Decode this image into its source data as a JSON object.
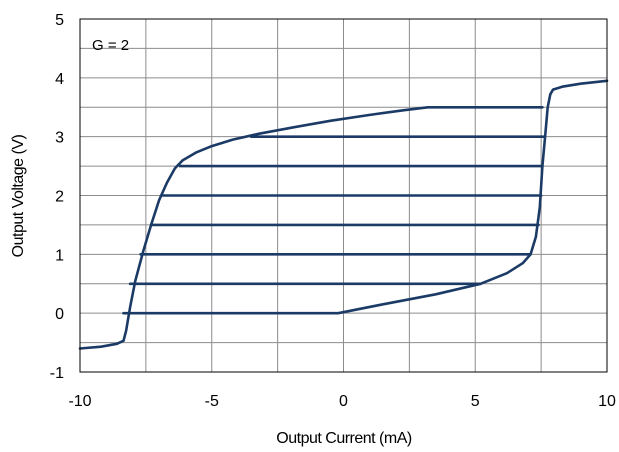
{
  "chart_data": {
    "type": "line",
    "title": "",
    "xlabel": "Output Current (mA)",
    "ylabel": "Output Voltage (V)",
    "xlim": [
      -10,
      10
    ],
    "ylim": [
      -1,
      5
    ],
    "xticks": [
      -10,
      -5,
      0,
      5,
      10
    ],
    "xtick_labels": [
      "-10",
      "-5",
      "0",
      "5",
      "10"
    ],
    "yticks": [
      -1,
      0,
      1,
      2,
      3,
      4,
      5
    ],
    "ytick_labels": [
      "-1",
      "0",
      "1",
      "2",
      "3",
      "4",
      "5"
    ],
    "grid": true,
    "annotation": "G = 2",
    "line_color": "#1b3b66",
    "series": [
      {
        "x": [
          -10,
          -9.2,
          -8.6,
          -8.35,
          -8.25,
          -8.1,
          -7.9,
          -7.6,
          -7.3,
          -7.0,
          -6.7,
          -6.4,
          -6.1,
          -5.6,
          -5.0,
          -4.2,
          -3.2,
          -2.0,
          -0.5,
          1.0,
          2.3,
          3.2,
          7.55
        ],
        "y": [
          -0.6,
          -0.57,
          -0.52,
          -0.47,
          -0.3,
          0.1,
          0.55,
          1.05,
          1.5,
          1.92,
          2.22,
          2.46,
          2.6,
          2.73,
          2.84,
          2.95,
          3.05,
          3.15,
          3.27,
          3.37,
          3.45,
          3.5,
          3.5
        ]
      },
      {
        "x": [
          -3.5,
          7.6
        ],
        "y": [
          3.0,
          3.0
        ]
      },
      {
        "x": [
          -6.2,
          7.55
        ],
        "y": [
          2.5,
          2.5
        ]
      },
      {
        "x": [
          -6.85,
          7.5
        ],
        "y": [
          2.0,
          2.0
        ]
      },
      {
        "x": [
          -7.3,
          7.4
        ],
        "y": [
          1.5,
          1.5
        ]
      },
      {
        "x": [
          -7.7,
          7.1
        ],
        "y": [
          1.0,
          1.0
        ]
      },
      {
        "x": [
          -8.1,
          5.2
        ],
        "y": [
          0.5,
          0.5
        ]
      },
      {
        "x": [
          -8.35,
          -0.2,
          1.5,
          3.5,
          5.2,
          6.2,
          6.8,
          7.1,
          7.3,
          7.45,
          7.55,
          7.65,
          7.75,
          7.85,
          7.95,
          8.3,
          9.0,
          10.0
        ],
        "y": [
          0.0,
          0.0,
          0.15,
          0.32,
          0.5,
          0.68,
          0.85,
          1.0,
          1.3,
          1.8,
          2.5,
          3.0,
          3.5,
          3.72,
          3.8,
          3.85,
          3.9,
          3.95
        ]
      }
    ]
  }
}
